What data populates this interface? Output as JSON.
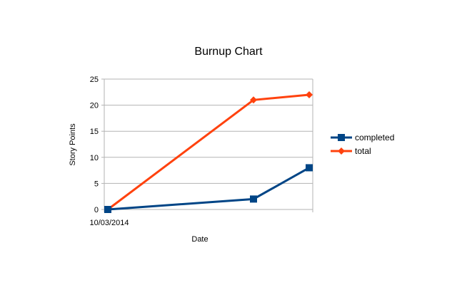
{
  "chart_data": {
    "type": "line",
    "title": "Burnup Chart",
    "xlabel": "Date",
    "ylabel": "Story Points",
    "x_tick_labels": [
      "10/03/2014"
    ],
    "y_ticks": [
      0,
      5,
      10,
      15,
      20,
      25
    ],
    "ylim": [
      0,
      25
    ],
    "legend_position": "right",
    "grid": true,
    "series": [
      {
        "name": "completed",
        "values": [
          0,
          2,
          8
        ],
        "color": "#004586",
        "marker": "square"
      },
      {
        "name": "total",
        "values": [
          0,
          21,
          22
        ],
        "color": "#ff420e",
        "marker": "diamond"
      }
    ]
  }
}
